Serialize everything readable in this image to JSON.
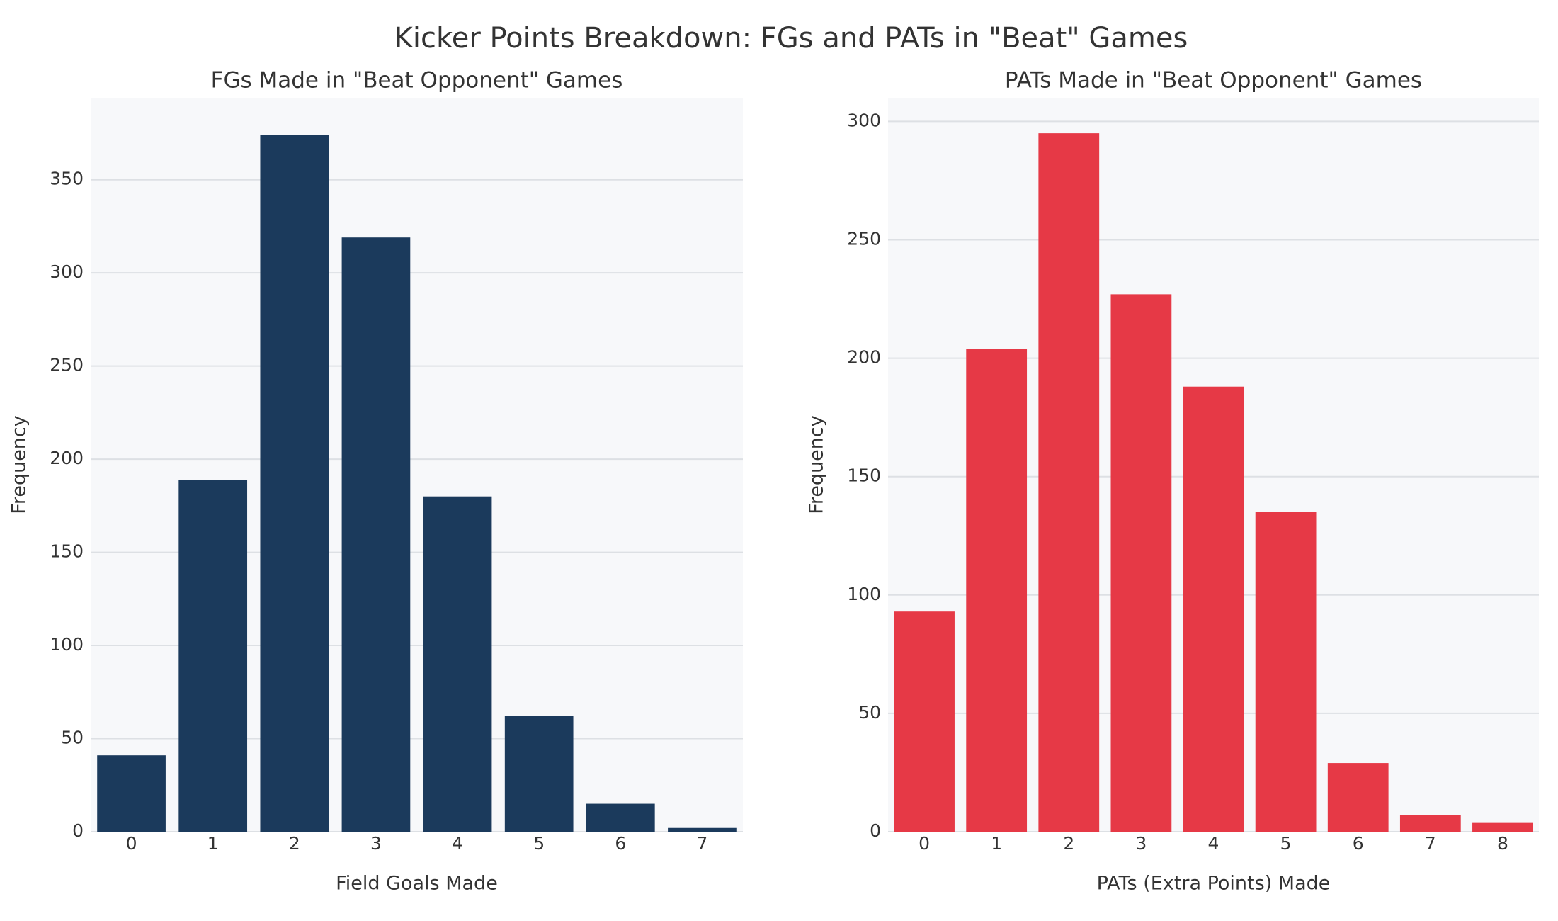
{
  "title": "Kicker Points Breakdown: FGs and PATs in \"Beat\" Games",
  "chart_data": [
    {
      "type": "bar",
      "title": "FGs Made in \"Beat Opponent\" Games",
      "x_label": "Field Goals Made",
      "y_label": "Frequency",
      "categories": [
        "0",
        "1",
        "2",
        "3",
        "4",
        "5",
        "6",
        "7"
      ],
      "values": [
        41,
        189,
        374,
        319,
        180,
        62,
        15,
        2
      ],
      "color": "#1b3a5c",
      "ylim": [
        0,
        394
      ],
      "yticks": [
        0,
        50,
        100,
        150,
        200,
        250,
        300,
        350
      ],
      "grid": true
    },
    {
      "type": "bar",
      "title": "PATs Made in \"Beat Opponent\" Games",
      "x_label": "PATs (Extra Points) Made",
      "y_label": "Frequency",
      "categories": [
        "0",
        "1",
        "2",
        "3",
        "4",
        "5",
        "6",
        "7",
        "8"
      ],
      "values": [
        93,
        204,
        295,
        227,
        188,
        135,
        29,
        7,
        4
      ],
      "color": "#e63946",
      "ylim": [
        0,
        310
      ],
      "yticks": [
        0,
        50,
        100,
        150,
        200,
        250,
        300
      ],
      "grid": true
    }
  ]
}
